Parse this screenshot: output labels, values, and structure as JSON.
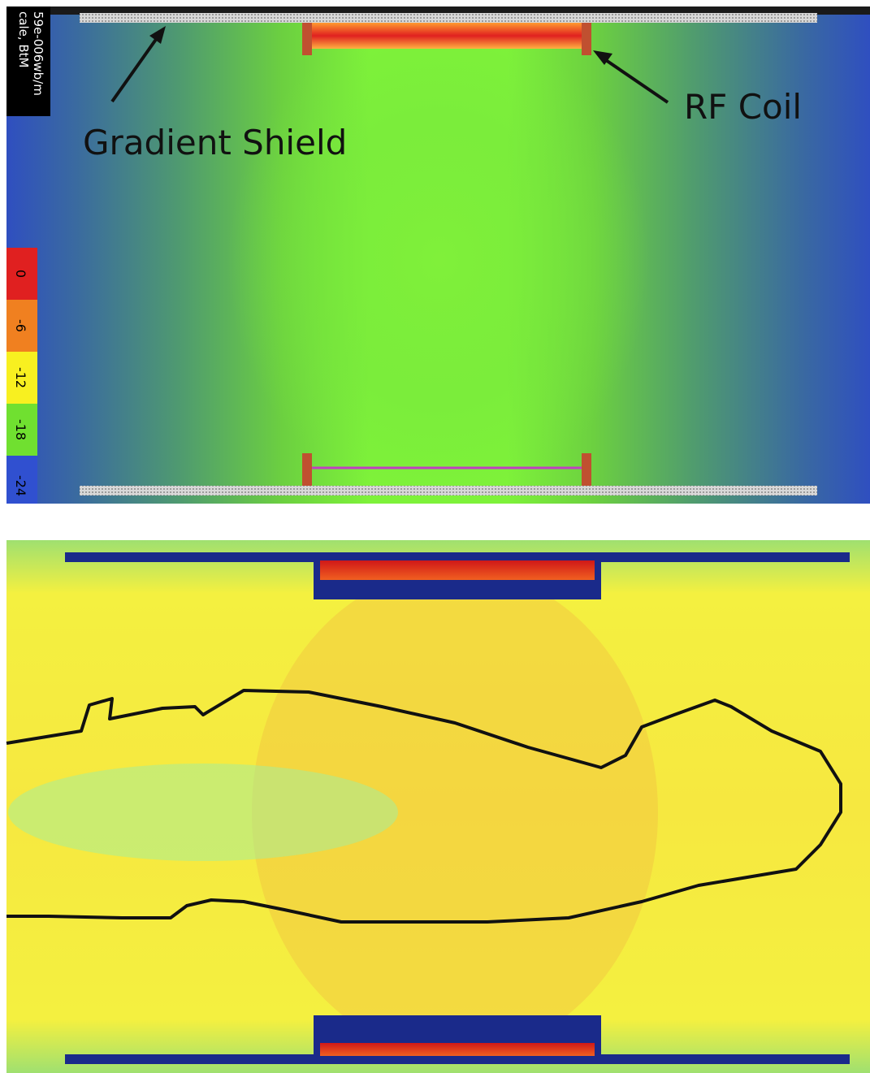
{
  "top_panel": {
    "scale_title": "cale, BtM",
    "scale_unit": "59e-006wb/m",
    "annotations": [
      "Gradient Shield",
      "RF Coil"
    ],
    "legend_labels": [
      "0",
      "-6",
      "-12",
      "-18",
      "-24"
    ]
  }
}
